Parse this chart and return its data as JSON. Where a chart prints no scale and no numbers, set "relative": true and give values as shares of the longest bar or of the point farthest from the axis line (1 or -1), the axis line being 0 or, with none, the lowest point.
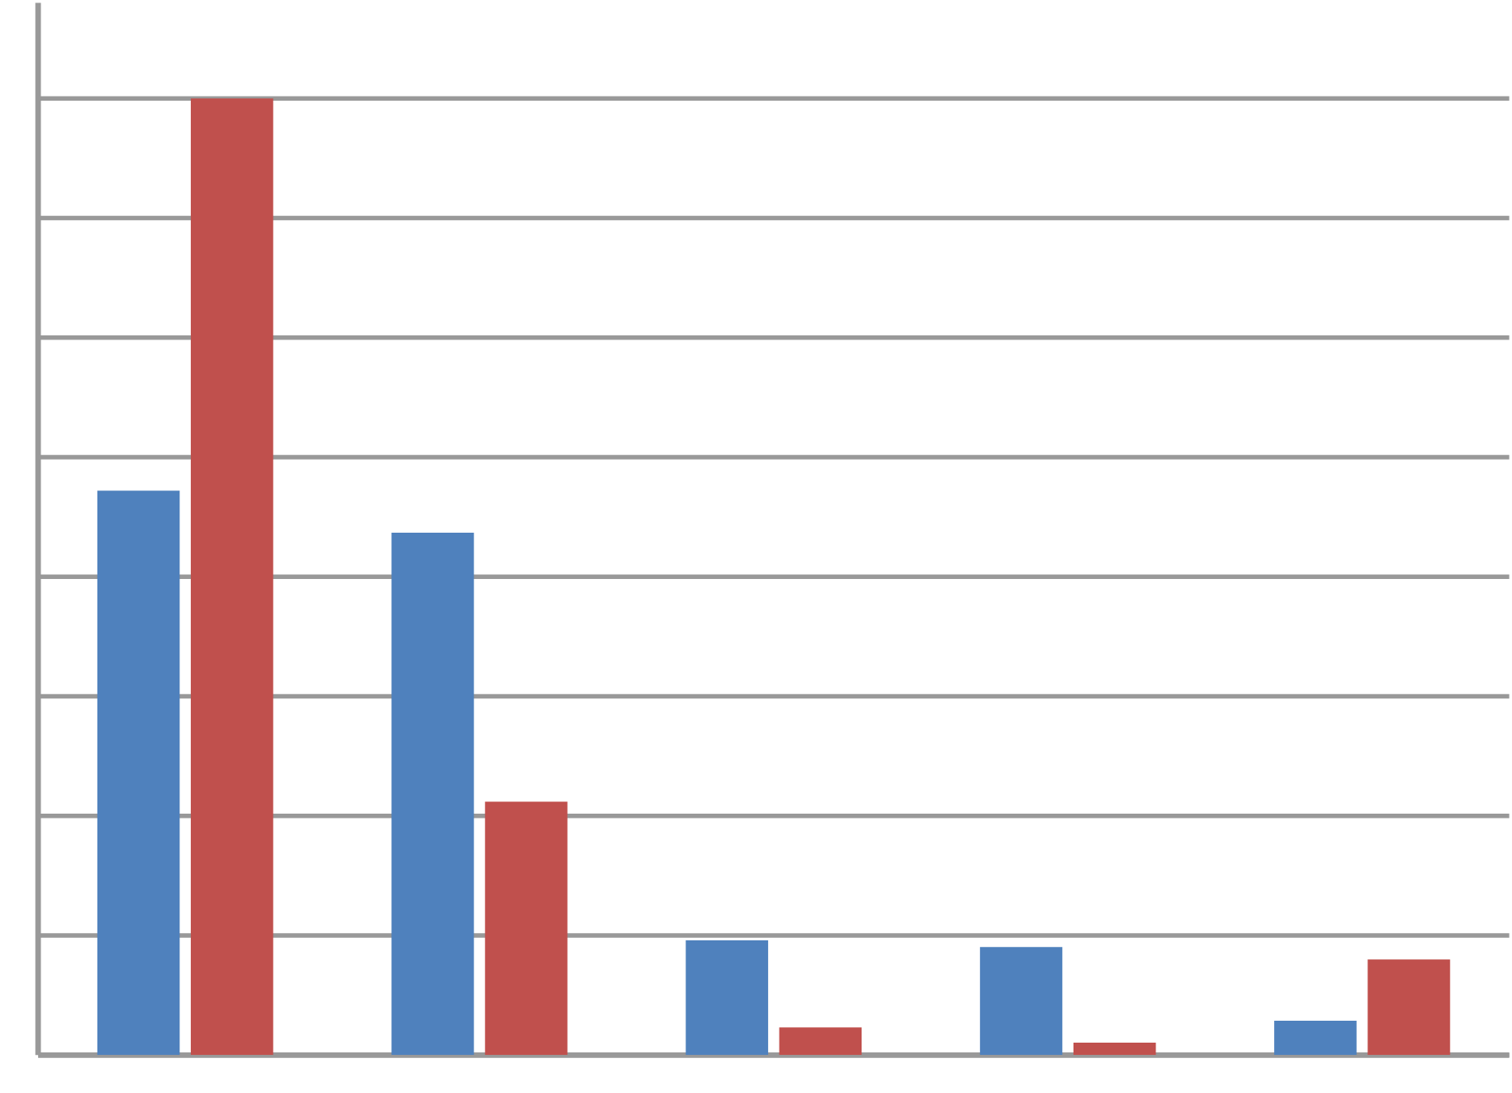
{
  "chart_data": {
    "type": "bar",
    "relative": true,
    "grid": "y",
    "categories": [
      null,
      null,
      null,
      null,
      null
    ],
    "series": [
      {
        "color": "#4f81bd",
        "values": [
          0.59,
          0.546,
          0.12,
          0.113,
          0.036
        ]
      },
      {
        "color": "#c0504d",
        "values": [
          1,
          0.265,
          0.029,
          0.013,
          0.1
        ]
      }
    ]
  }
}
